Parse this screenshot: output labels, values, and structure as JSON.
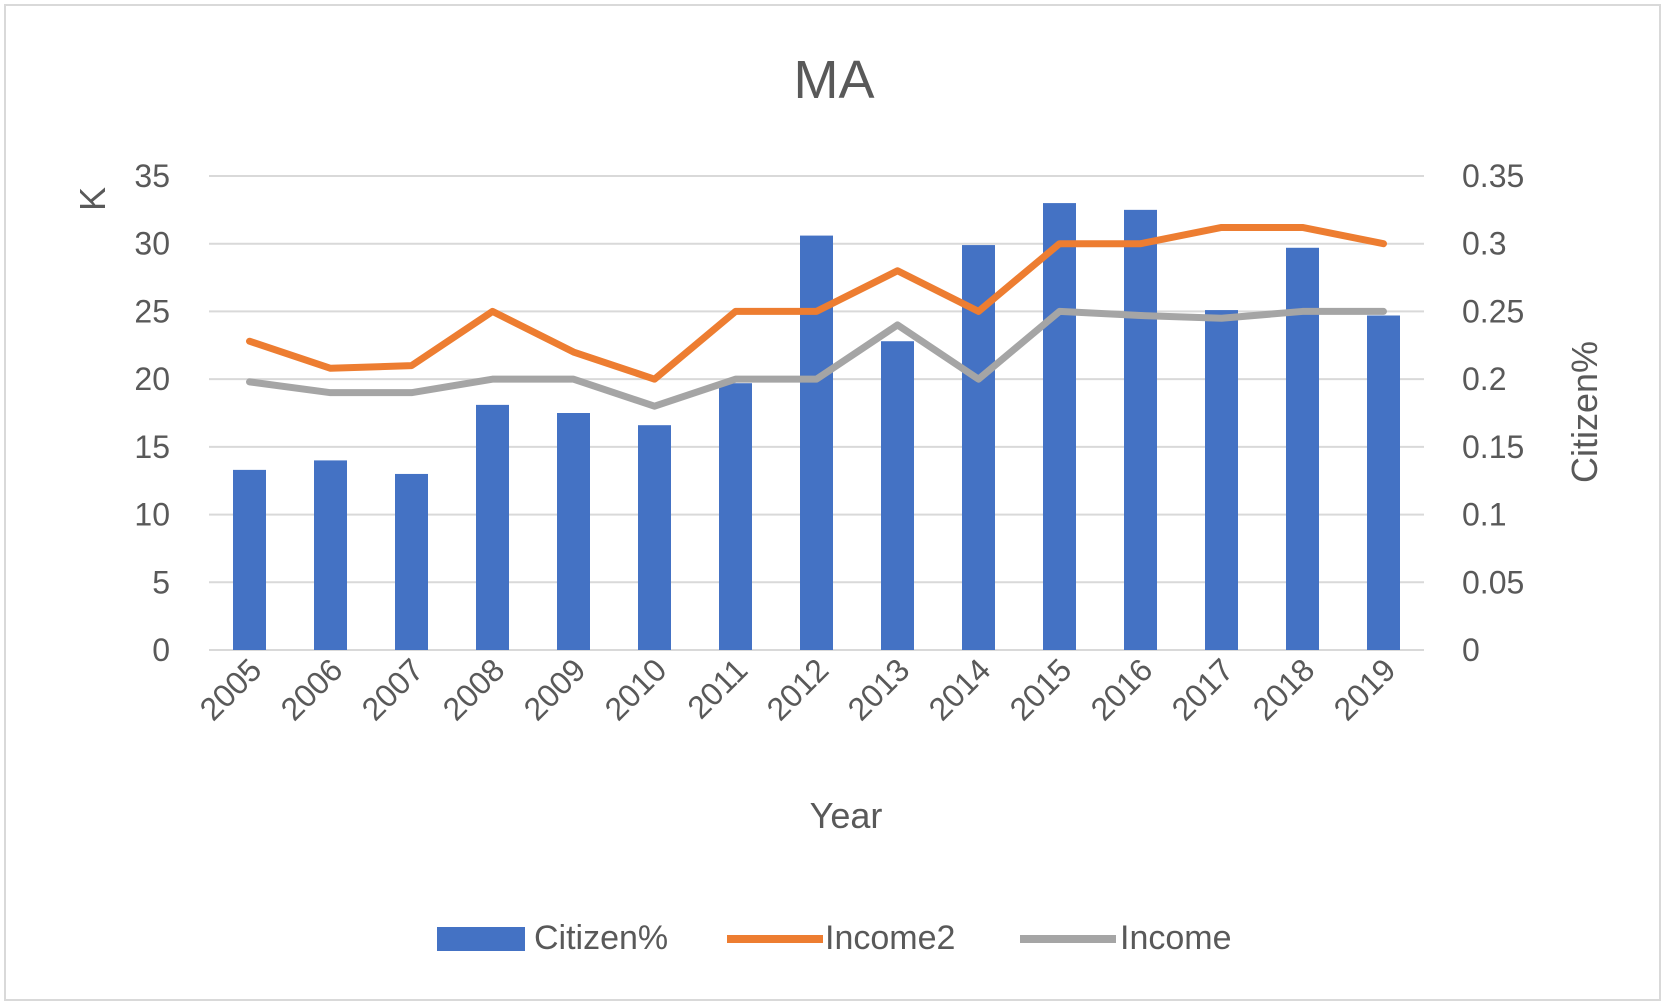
{
  "chart_data": {
    "type": "bar",
    "title": "MA",
    "xlabel": "Year",
    "ylabel": "K",
    "y2label": "Citizen%",
    "categories": [
      "2005",
      "2006",
      "2007",
      "2008",
      "2009",
      "2010",
      "2011",
      "2012",
      "2013",
      "2014",
      "2015",
      "2016",
      "2017",
      "2018",
      "2019"
    ],
    "ylim": [
      0,
      35
    ],
    "yticks": [
      "0",
      "5",
      "10",
      "15",
      "20",
      "25",
      "30",
      "35"
    ],
    "y2lim": [
      0,
      0.35
    ],
    "y2ticks": [
      "0",
      "0.05",
      "0.1",
      "0.15",
      "0.2",
      "0.25",
      "0.3",
      "0.35"
    ],
    "grid": true,
    "legend_position": "bottom",
    "series": [
      {
        "name": "Citizen%",
        "type": "bar",
        "axis": "right",
        "color": "#4472C4",
        "values": [
          0.133,
          0.14,
          0.13,
          0.181,
          0.175,
          0.166,
          0.197,
          0.306,
          0.228,
          0.299,
          0.33,
          0.325,
          0.251,
          0.297,
          0.247
        ]
      },
      {
        "name": "Income2",
        "type": "line",
        "axis": "left",
        "color": "#ED7D31",
        "values": [
          22.8,
          20.8,
          21.0,
          25.0,
          22.0,
          20.0,
          25.0,
          25.0,
          28.0,
          25.0,
          30.0,
          30.0,
          31.2,
          31.2,
          30.0
        ]
      },
      {
        "name": "Income",
        "type": "line",
        "axis": "left",
        "color": "#A5A5A5",
        "values": [
          19.8,
          19.0,
          19.0,
          20.0,
          20.0,
          18.0,
          20.0,
          20.0,
          24.0,
          20.0,
          25.0,
          24.7,
          24.5,
          25.0,
          25.0
        ]
      }
    ]
  }
}
